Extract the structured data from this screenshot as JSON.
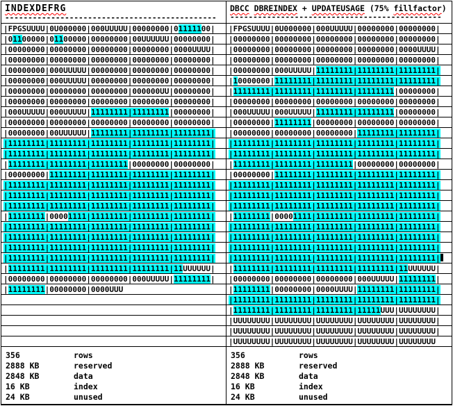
{
  "accent_colors": {
    "highlight": "#00ffff",
    "squiggle": "#ff0000",
    "text": "#000000",
    "background": "#ffffff"
  },
  "stats_shared": {
    "rows": "356",
    "reserved": "2888 KB",
    "data": "2848 KB",
    "index": "16 KB",
    "unused": "24 KB"
  },
  "columns": [
    {
      "id": "left",
      "title": [
        [
          "INDEXDEFRG",
          "w"
        ]
      ],
      "dashes": "----------------------------------------------",
      "rows": [
        [
          [
            "|FPGSUUUU|0U000000|000UUUUU|00000000|0",
            ""
          ],
          [
            "11111",
            "h"
          ],
          [
            "00|",
            ""
          ]
        ],
        [
          [
            "|0",
            ""
          ],
          [
            "11",
            "h"
          ],
          [
            "00000|0",
            ""
          ],
          [
            "11",
            "h"
          ],
          [
            "00000|00000000|00UUUUUU|00000000|",
            ""
          ]
        ],
        [
          [
            "|00000000|00000000|00000000|00000000|0000UUUU|",
            ""
          ]
        ],
        [
          [
            "|00000000|00000000|00000000|00000000|00000000|",
            ""
          ]
        ],
        [
          [
            "|00000000|000UUUUU|00000000|00000000|00000000|",
            ""
          ]
        ],
        [
          [
            "|00000000|000UUUUU|00000000|00000000|00000000|",
            ""
          ]
        ],
        [
          [
            "|00000000|00000000|00000000|000000UU|00000000|",
            ""
          ]
        ],
        [
          [
            "|00000000|00000000|00000000|00000000|00000000|",
            ""
          ]
        ],
        [
          [
            "|000UUUUU|000UUUUU|",
            ""
          ],
          [
            "11111111|11111111",
            "h"
          ],
          [
            "|00000000|",
            ""
          ]
        ],
        [
          [
            "|00000000|00000000|00000000|00000000|00000000|",
            ""
          ]
        ],
        [
          [
            "|00000000|00UUUUUU|",
            ""
          ],
          [
            "11111111|11111111|11111111|",
            "h"
          ]
        ],
        [
          [
            "|11111111|11111111|11111111|11111111|11111111|",
            "h"
          ]
        ],
        [
          [
            "|11111111|11111111|11111111|11111111|11111111|",
            "h"
          ]
        ],
        [
          [
            "|",
            ""
          ],
          [
            "11111111|11111111|11111111",
            "h"
          ],
          [
            "|00000000|00000000|",
            ""
          ]
        ],
        [
          [
            "|00000000|",
            ""
          ],
          [
            "11111111|11111111|11111111|11111111|",
            "h"
          ]
        ],
        [
          [
            "|11111111|11111111|11111111|11111111|11111111|",
            "h"
          ]
        ],
        [
          [
            "|11111111|11111111|11111111|11111111|11111111|",
            "h"
          ]
        ],
        [
          [
            "|11111111|11111111|11111111|11111111|11111111|",
            "h"
          ]
        ],
        [
          [
            "|",
            ""
          ],
          [
            "11111111",
            "h"
          ],
          [
            "|0000",
            ""
          ],
          [
            "1111|11111111|11111111|11111111|",
            "h"
          ]
        ],
        [
          [
            "|11111111|11111111|11111111|11111111|11111111|",
            "h"
          ]
        ],
        [
          [
            "|11111111|11111111|11111111|11111111|11111111|",
            "h"
          ]
        ],
        [
          [
            "|11111111|11111111|11111111|11111111|11111111|",
            "h"
          ]
        ],
        [
          [
            "|11111111|11111111|11111111|11111111|11111111|",
            "h"
          ]
        ],
        [
          [
            "|",
            ""
          ],
          [
            "11111111|11111111|11111111|11111111|11",
            "h"
          ],
          [
            "UUUUUU|",
            ""
          ]
        ],
        [
          [
            "|00000000|00000000|00000000|000UUUUU|",
            ""
          ],
          [
            "11111111",
            "h"
          ],
          [
            "|",
            ""
          ]
        ],
        [
          [
            "|",
            ""
          ],
          [
            "11111111",
            "h"
          ],
          [
            "|00000000|0000UUU",
            ""
          ]
        ],
        [],
        [],
        [],
        [],
        []
      ],
      "stats": [
        [
          "356",
          "rows"
        ],
        [
          "2888 KB",
          "reserved"
        ],
        [
          "2848 KB",
          "data"
        ],
        [
          "16 KB",
          "index"
        ],
        [
          "24 KB",
          "unused"
        ]
      ]
    },
    {
      "id": "right",
      "title": [
        [
          "DBCC",
          "w"
        ],
        [
          " ",
          ""
        ],
        [
          "DBREINDEX",
          "w"
        ],
        [
          " + ",
          ""
        ],
        [
          "UPDATEUSAGE",
          "w"
        ],
        [
          " (75% ",
          ""
        ],
        [
          "fillfactor",
          "w"
        ],
        [
          ")",
          ""
        ]
      ],
      "dashes": "----------------------------------------------",
      "rows": [
        [
          [
            "|FPGSUUUU|0U000000|000UUUUU|00000000|00000000|",
            ""
          ]
        ],
        [
          [
            "|00000000|00000000|00000000|00000000|00000000|",
            ""
          ]
        ],
        [
          [
            "|00000000|00000000|00000000|00000000|0000UUUU|",
            ""
          ]
        ],
        [
          [
            "|00000000|00000000|00000000|00000000|00000000|",
            ""
          ]
        ],
        [
          [
            "|00000000|000UUUUU|",
            ""
          ],
          [
            "11111111|11111111|11111111|",
            "h"
          ]
        ],
        [
          [
            "|",
            ""
          ],
          [
            "1",
            "h"
          ],
          [
            "0000000|",
            ""
          ],
          [
            "11111111|11111111|11111111|11111111|",
            "h"
          ]
        ],
        [
          [
            "|",
            ""
          ],
          [
            "11111111|11111111|11111111|11111111",
            "h"
          ],
          [
            "|00000000|",
            ""
          ]
        ],
        [
          [
            "|00000000|00000000|00000000|00000000|00000000|",
            ""
          ]
        ],
        [
          [
            "|000UUUUU|000UUUUU|",
            ""
          ],
          [
            "11111111|11111111",
            "h"
          ],
          [
            "|00000000|",
            ""
          ]
        ],
        [
          [
            "|00000000|",
            ""
          ],
          [
            "11111111",
            "h"
          ],
          [
            "|00000000|00000000|00000000|",
            ""
          ]
        ],
        [
          [
            "|00000000|00000000|00000000|",
            ""
          ],
          [
            "11111111|11111111|",
            "h"
          ]
        ],
        [
          [
            "|11111111|11111111|11111111|11111111|11111111|",
            "h"
          ]
        ],
        [
          [
            "|11111111|11111111|11111111|11111111|11111111|",
            "h"
          ]
        ],
        [
          [
            "|",
            ""
          ],
          [
            "11111111|11111111|11111111",
            "h"
          ],
          [
            "|00000000|00000000|",
            ""
          ]
        ],
        [
          [
            "|00000000|",
            ""
          ],
          [
            "11111111|11111111|11111111|11111111|",
            "h"
          ]
        ],
        [
          [
            "|11111111|11111111|11111111|11111111|11111111|",
            "h"
          ]
        ],
        [
          [
            "|11111111|11111111|11111111|11111111|11111111|",
            "h"
          ]
        ],
        [
          [
            "|11111111|11111111|11111111|11111111|11111111|",
            "h"
          ]
        ],
        [
          [
            "|",
            ""
          ],
          [
            "11111111",
            "h"
          ],
          [
            "|0000",
            ""
          ],
          [
            "1111|11111111|11111111|11111111|",
            "h"
          ]
        ],
        [
          [
            "|11111111|11111111|11111111|11111111|11111111|",
            "h"
          ]
        ],
        [
          [
            "|11111111|11111111|11111111|11111111|11111111|",
            "h"
          ]
        ],
        [
          [
            "|11111111|11111111|11111111|11111111|11111111|",
            "h"
          ]
        ],
        [
          [
            "|11111111|11111111|11111111|11111111|11111111|",
            "h"
          ],
          [
            "",
            "c"
          ]
        ],
        [
          [
            "|",
            ""
          ],
          [
            "11111111|11111111|11111111|11111111|11",
            "h"
          ],
          [
            "UUUUUU|",
            ""
          ]
        ],
        [
          [
            "|00000000|00000000|00000000|000UUUUU|",
            ""
          ],
          [
            "11111111",
            "h"
          ],
          [
            "|",
            ""
          ]
        ],
        [
          [
            "|",
            ""
          ],
          [
            "11111111",
            "h"
          ],
          [
            "|00000000|0000UUUU|",
            ""
          ],
          [
            "11111111|11111111|",
            "h"
          ]
        ],
        [
          [
            "|11111111|11111111|11111111|11111111|11111111|",
            "h"
          ]
        ],
        [
          [
            "|",
            ""
          ],
          [
            "11111111|11111111|11111111|11111",
            "h"
          ],
          [
            "UUU|UUUUUUUU|",
            ""
          ]
        ],
        [
          [
            "|",
            ""
          ],
          [
            "UUUUUUUU",
            "w"
          ],
          [
            "|",
            ""
          ],
          [
            "UUUUUUUU",
            "w"
          ],
          [
            "|",
            ""
          ],
          [
            "UUUUUUUU",
            "w"
          ],
          [
            "|",
            ""
          ],
          [
            "UUUUUUUU",
            "w"
          ],
          [
            "|",
            ""
          ],
          [
            "UUUUUUUU",
            "w"
          ],
          [
            "|",
            ""
          ]
        ],
        [
          [
            "|",
            ""
          ],
          [
            "UUUUUUUU",
            "w"
          ],
          [
            "|",
            ""
          ],
          [
            "UUUUUUUU",
            "w"
          ],
          [
            "|",
            ""
          ],
          [
            "UUUUUUUU",
            "w"
          ],
          [
            "|",
            ""
          ],
          [
            "UUUUUUUU",
            "w"
          ],
          [
            "|",
            ""
          ],
          [
            "UUUUUUUU",
            "w"
          ],
          [
            "|",
            ""
          ]
        ],
        [
          [
            "|",
            ""
          ],
          [
            "UUUUUUUU",
            "w"
          ],
          [
            "|",
            ""
          ],
          [
            "UUUUUUUU",
            "w"
          ],
          [
            "|",
            ""
          ],
          [
            "UUUUUUUU",
            "w"
          ],
          [
            "|",
            ""
          ],
          [
            "UUUUUUUU",
            "w"
          ],
          [
            "|",
            ""
          ],
          [
            "UUUUUUUU",
            "w"
          ]
        ]
      ],
      "stats": [
        [
          "356",
          "rows"
        ],
        [
          "2888 KB",
          "reserved"
        ],
        [
          "2848 KB",
          "data"
        ],
        [
          "16 KB",
          "index"
        ],
        [
          "24 KB",
          "unused"
        ]
      ]
    }
  ]
}
